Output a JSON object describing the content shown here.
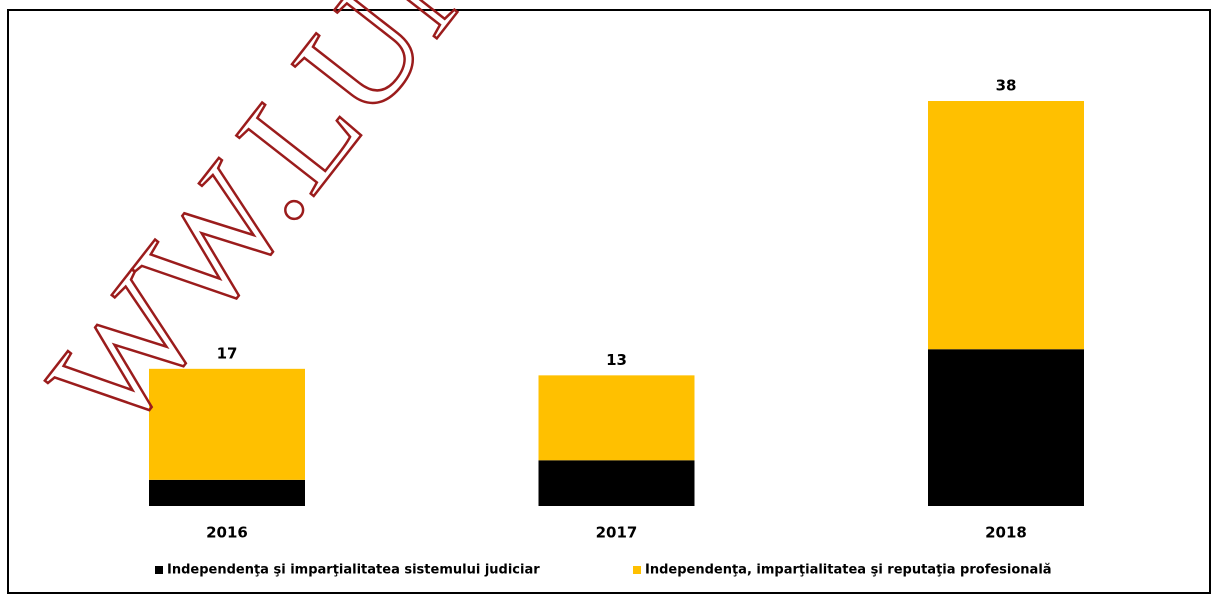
{
  "chart_data": {
    "type": "stacked_bar",
    "categories": [
      "2016",
      "2017",
      "2018"
    ],
    "series": [
      {
        "name": "Independenţa şi imparţialitatea sistemului judiciar",
        "color": "#000000",
        "values": [
          4,
          7,
          24
        ]
      },
      {
        "name": "Independenţa, imparţialitatea şi reputaţia profesională",
        "color": "#ffc000",
        "values": [
          17,
          13,
          38
        ]
      }
    ],
    "watermark": "WW.LUM"
  }
}
